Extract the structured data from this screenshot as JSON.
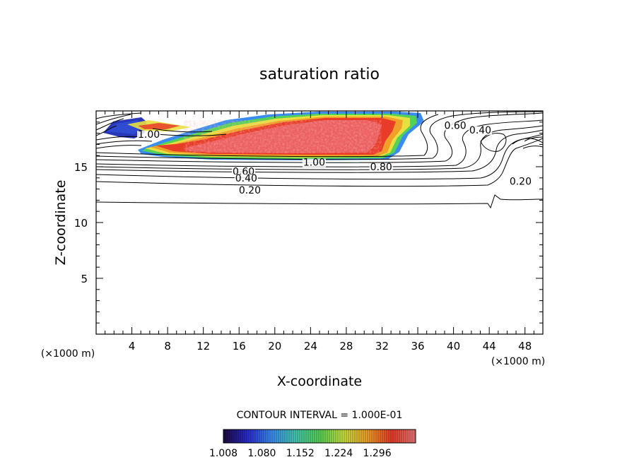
{
  "chart_data": {
    "type": "contour",
    "title": "saturation ratio",
    "xlabel": "X-coordinate",
    "ylabel": "Z-coordinate",
    "x_unit": "(×1000 m)",
    "x_unit_right": "(×1000 m)",
    "xlim": [
      0,
      50
    ],
    "ylim": [
      0,
      20
    ],
    "x_ticks": [
      4,
      8,
      12,
      16,
      20,
      24,
      28,
      32,
      36,
      40,
      44,
      48
    ],
    "y_ticks": [
      5,
      10,
      15
    ],
    "contour_interval_text": "CONTOUR INTERVAL = 1.000E-01",
    "contour_labels": [
      {
        "text": "1.00",
        "x": 5.9,
        "z": 17.9
      },
      {
        "text": "1.00",
        "x": 24.4,
        "z": 15.4
      },
      {
        "text": "0.80",
        "x": 31.9,
        "z": 15.0
      },
      {
        "text": "0.60",
        "x": 16.5,
        "z": 14.6
      },
      {
        "text": "0.40",
        "x": 16.8,
        "z": 14.0
      },
      {
        "text": "0.20",
        "x": 17.2,
        "z": 12.9
      },
      {
        "text": "0.60",
        "x": 40.2,
        "z": 18.7
      },
      {
        "text": "0.40",
        "x": 43.0,
        "z": 18.3
      },
      {
        "text": "0.20",
        "x": 47.5,
        "z": 13.7
      }
    ],
    "colorbar": {
      "ticks": [
        "1.008",
        "1.080",
        "1.152",
        "1.224",
        "1.296"
      ],
      "range": [
        1.008,
        1.368
      ],
      "colors": [
        "#1a0a3c",
        "#2a2ad0",
        "#3a8cf0",
        "#45c8b0",
        "#55d255",
        "#c8e040",
        "#f0a028",
        "#e83c28",
        "#e87878"
      ]
    }
  }
}
